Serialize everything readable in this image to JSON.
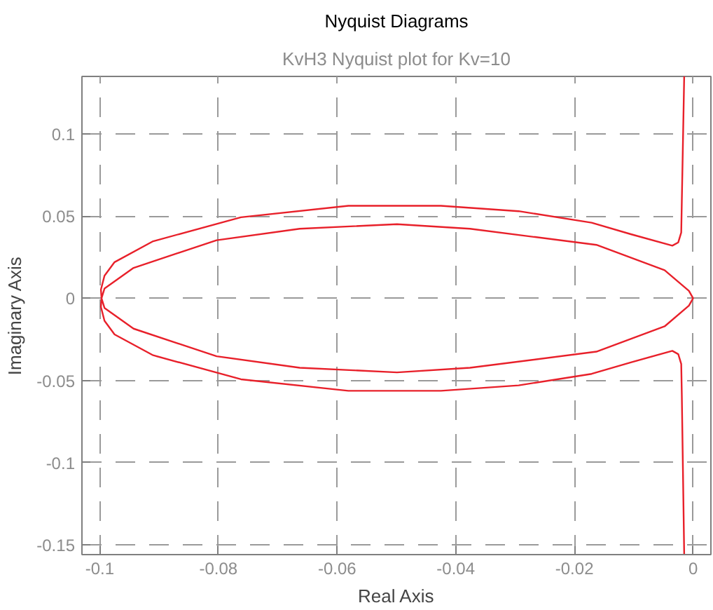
{
  "chart_data": {
    "type": "line",
    "title": "Nyquist Diagrams",
    "subtitle": "KvH3 Nyquist plot for Kv=10",
    "xlabel": "Real Axis",
    "ylabel": "Imaginary Axis",
    "series": [
      {
        "color": "#e8202a",
        "x": [
          -0.0015,
          -0.0019,
          -0.002,
          -0.0025,
          -0.0035,
          -0.0105,
          -0.0171,
          -0.0294,
          -0.0425,
          -0.0581,
          -0.0762,
          -0.091,
          -0.0975,
          -0.0992,
          -0.0998,
          -0.0997,
          -0.0992,
          -0.0943,
          -0.0803,
          -0.0663,
          -0.0499,
          -0.0376,
          -0.0163,
          -0.0048,
          -0.0007,
          0,
          -0.0007,
          -0.0048,
          -0.0163,
          -0.0376,
          -0.0499,
          -0.0663,
          -0.0803,
          -0.0943,
          -0.0992,
          -0.0997,
          -0.0998,
          -0.0992,
          -0.0975,
          -0.091,
          -0.0762,
          -0.0581,
          -0.0425,
          -0.0294,
          -0.0171,
          -0.0105,
          -0.0035,
          -0.0025,
          -0.002,
          -0.0019,
          -0.0015
        ],
        "values": [
          0.135,
          0.059,
          0.04,
          0.034,
          0.032,
          0.039,
          0.046,
          0.053,
          0.0563,
          0.0563,
          0.0493,
          0.0347,
          0.022,
          0.0137,
          0.0053,
          0,
          -0.0059,
          -0.0185,
          -0.0353,
          -0.0423,
          -0.0451,
          -0.0423,
          -0.0325,
          -0.0171,
          -0.0045,
          0,
          0.0045,
          0.0171,
          0.0325,
          0.0423,
          0.0451,
          0.0423,
          0.0353,
          0.0185,
          0.0059,
          0,
          -0.0053,
          -0.0137,
          -0.022,
          -0.0347,
          -0.0493,
          -0.0563,
          -0.0563,
          -0.053,
          -0.046,
          -0.039,
          -0.032,
          -0.034,
          -0.04,
          -0.059,
          -0.156
        ]
      }
    ],
    "xlim": [
      -0.103,
      0.003
    ],
    "ylim": [
      -0.156,
      0.135
    ],
    "xticks": [
      -0.1,
      -0.08,
      -0.06,
      -0.04,
      -0.02,
      0
    ],
    "yticks": [
      -0.15,
      -0.1,
      -0.05,
      0,
      0.05,
      0.1
    ],
    "grid": true,
    "line_style": "solid"
  }
}
